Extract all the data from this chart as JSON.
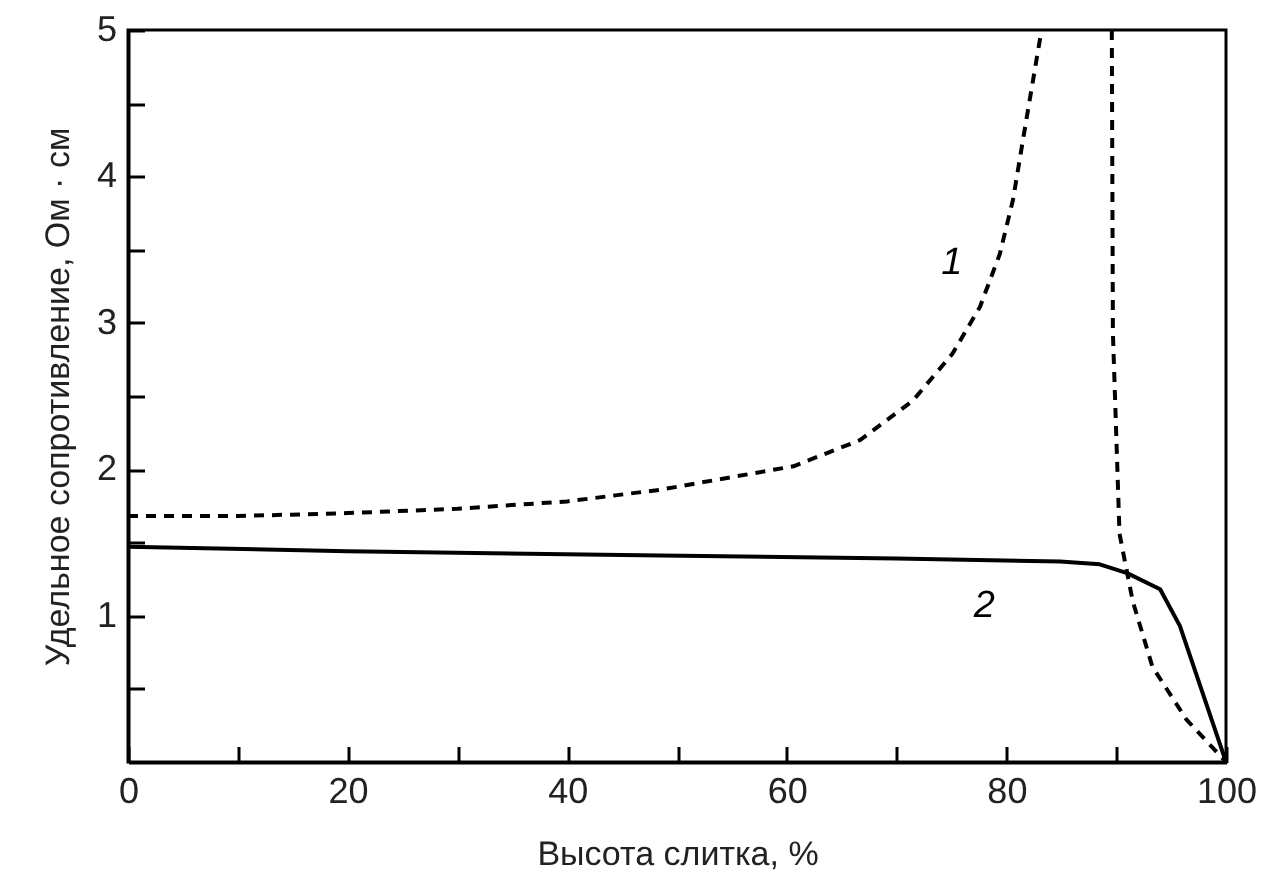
{
  "chart_data": {
    "type": "line",
    "xlabel": "Высота слитка, %",
    "ylabel": "Удельное сопротивление, Ом · см",
    "xlim": [
      0,
      100
    ],
    "ylim": [
      0,
      5
    ],
    "xticks": [
      0,
      {
        "value": 10,
        "label": null
      },
      20,
      {
        "value": 30,
        "label": null
      },
      40,
      {
        "value": 50,
        "label": null
      },
      60,
      {
        "value": 70,
        "label": null
      },
      80,
      {
        "value": 90,
        "label": null
      },
      100
    ],
    "yticks": [
      {
        "value": 0.5,
        "label": null
      },
      1,
      {
        "value": 1.5,
        "label": null
      },
      2,
      {
        "value": 2.5,
        "label": null
      },
      3,
      {
        "value": 3.5,
        "label": null
      },
      4,
      {
        "value": 4.5,
        "label": null
      },
      5
    ],
    "grid": false,
    "marker": "none",
    "series": [
      {
        "name": "1",
        "color": "#000000",
        "line_style": "dashed",
        "x": [
          0,
          10,
          20,
          30,
          40,
          48.5,
          60.6,
          66.7,
          71.5,
          75.1,
          77.6,
          79.4,
          80.6,
          81.8,
          83.2,
          86,
          89.6,
          89.7,
          90.3,
          91.5,
          93.3,
          96.4,
          100
        ],
        "values": [
          1.68,
          1.68,
          1.7,
          1.73,
          1.78,
          1.86,
          2.02,
          2.2,
          2.47,
          2.79,
          3.11,
          3.47,
          3.84,
          4.38,
          5,
          null,
          5,
          2.93,
          1.56,
          1.1,
          0.65,
          0.29,
          0
        ]
      },
      {
        "name": "2",
        "color": "#000000",
        "line_style": "solid",
        "x": [
          0,
          20,
          48.5,
          70,
          84.9,
          88.5,
          91,
          94,
          95.8,
          100
        ],
        "values": [
          1.47,
          1.44,
          1.41,
          1.39,
          1.37,
          1.35,
          1.29,
          1.18,
          0.93,
          0
        ]
      }
    ]
  }
}
